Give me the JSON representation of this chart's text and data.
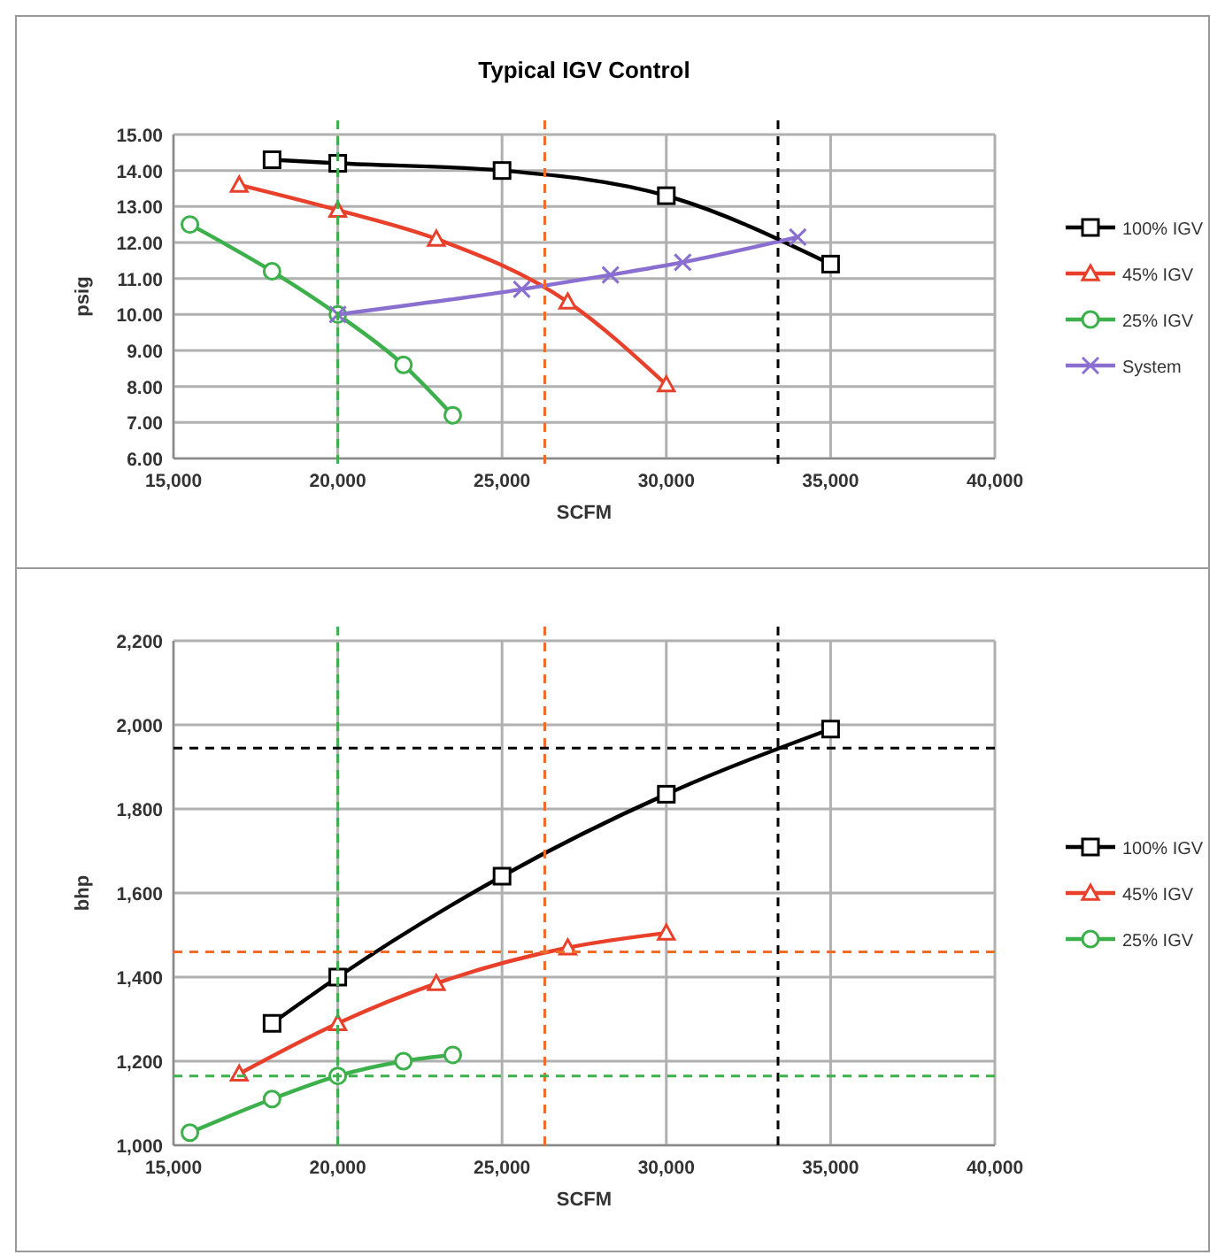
{
  "chart_data": [
    {
      "type": "line",
      "title": "Typical IGV Control",
      "xlabel": "SCFM",
      "ylabel": "psig",
      "xlim": [
        15000,
        40000
      ],
      "xticks": [
        {
          "value": 15000,
          "label": "15,000"
        },
        {
          "value": 20000,
          "label": "20,000"
        },
        {
          "value": 25000,
          "label": "25,000"
        },
        {
          "value": 30000,
          "label": "30,000"
        },
        {
          "value": 35000,
          "label": "35,000"
        },
        {
          "value": 40000,
          "label": "40,000"
        }
      ],
      "ylim": [
        6,
        15
      ],
      "yticks": [
        {
          "value": 6,
          "label": "6.00"
        },
        {
          "value": 7,
          "label": "7.00"
        },
        {
          "value": 8,
          "label": "8.00"
        },
        {
          "value": 9,
          "label": "9.00"
        },
        {
          "value": 10,
          "label": "10.00"
        },
        {
          "value": 11,
          "label": "11.00"
        },
        {
          "value": 12,
          "label": "12.00"
        },
        {
          "value": 13,
          "label": "13.00"
        },
        {
          "value": 14,
          "label": "14.00"
        },
        {
          "value": 15,
          "label": "15.00"
        }
      ],
      "grid": true,
      "legend": "right",
      "line_style": "solid",
      "series": [
        {
          "name": "100% IGV",
          "color": "#000000",
          "marker": "square",
          "x": [
            18000,
            20000,
            25000,
            30000,
            35000
          ],
          "values": [
            14.3,
            14.2,
            14.0,
            13.3,
            11.4
          ]
        },
        {
          "name": "45% IGV",
          "color": "#e8402a",
          "marker": "triangle",
          "x": [
            17000,
            20000,
            23000,
            27000,
            30000
          ],
          "values": [
            13.6,
            12.9,
            12.1,
            10.35,
            8.05
          ]
        },
        {
          "name": "25% IGV",
          "color": "#3cb04a",
          "marker": "circle",
          "x": [
            15500,
            18000,
            20000,
            22000,
            23500
          ],
          "values": [
            12.5,
            11.2,
            10.0,
            8.6,
            7.2
          ]
        },
        {
          "name": "System",
          "color": "#8a6fd0",
          "marker": "cross",
          "x": [
            20000,
            25600,
            28300,
            30500,
            34000
          ],
          "values": [
            10.0,
            10.7,
            11.1,
            11.45,
            12.15
          ]
        }
      ],
      "ref_lines": [
        {
          "axis": "x",
          "value": 20000,
          "color": "#3cb04a",
          "line_style": "dashed"
        },
        {
          "axis": "x",
          "value": 26300,
          "color": "#f06a2a",
          "line_style": "dashed"
        },
        {
          "axis": "x",
          "value": 33400,
          "color": "#000000",
          "line_style": "dashed"
        }
      ]
    },
    {
      "type": "line",
      "xlabel": "SCFM",
      "ylabel": "bhp",
      "xlim": [
        15000,
        40000
      ],
      "xticks": [
        {
          "value": 15000,
          "label": "15,000"
        },
        {
          "value": 20000,
          "label": "20,000"
        },
        {
          "value": 25000,
          "label": "25,000"
        },
        {
          "value": 30000,
          "label": "30,000"
        },
        {
          "value": 35000,
          "label": "35,000"
        },
        {
          "value": 40000,
          "label": "40,000"
        }
      ],
      "ylim": [
        1000,
        2200
      ],
      "yticks": [
        {
          "value": 1000,
          "label": "1,000"
        },
        {
          "value": 1200,
          "label": "1,200"
        },
        {
          "value": 1400,
          "label": "1,400"
        },
        {
          "value": 1600,
          "label": "1,600"
        },
        {
          "value": 1800,
          "label": "1,800"
        },
        {
          "value": 2000,
          "label": "2,000"
        },
        {
          "value": 2200,
          "label": "2,200"
        }
      ],
      "grid": true,
      "legend": "right",
      "line_style": "solid",
      "series": [
        {
          "name": "100% IGV",
          "color": "#000000",
          "marker": "square",
          "x": [
            18000,
            20000,
            25000,
            30000,
            35000
          ],
          "values": [
            1290,
            1400,
            1640,
            1835,
            1990
          ]
        },
        {
          "name": "45% IGV",
          "color": "#e8402a",
          "marker": "triangle",
          "x": [
            17000,
            20000,
            23000,
            27000,
            30000
          ],
          "values": [
            1170,
            1290,
            1385,
            1470,
            1505
          ]
        },
        {
          "name": "25% IGV",
          "color": "#3cb04a",
          "marker": "circle",
          "x": [
            15500,
            18000,
            20000,
            22000,
            23500
          ],
          "values": [
            1030,
            1110,
            1165,
            1200,
            1215
          ]
        }
      ],
      "ref_lines": [
        {
          "axis": "x",
          "value": 20000,
          "color": "#3cb04a",
          "line_style": "dashed"
        },
        {
          "axis": "x",
          "value": 26300,
          "color": "#f06a2a",
          "line_style": "dashed"
        },
        {
          "axis": "x",
          "value": 33400,
          "color": "#000000",
          "line_style": "dashed"
        },
        {
          "axis": "y",
          "value": 1945,
          "color": "#000000",
          "line_style": "dashed"
        },
        {
          "axis": "y",
          "value": 1460,
          "color": "#f06a2a",
          "line_style": "dashed"
        },
        {
          "axis": "y",
          "value": 1165,
          "color": "#3cb04a",
          "line_style": "dashed"
        }
      ]
    }
  ]
}
